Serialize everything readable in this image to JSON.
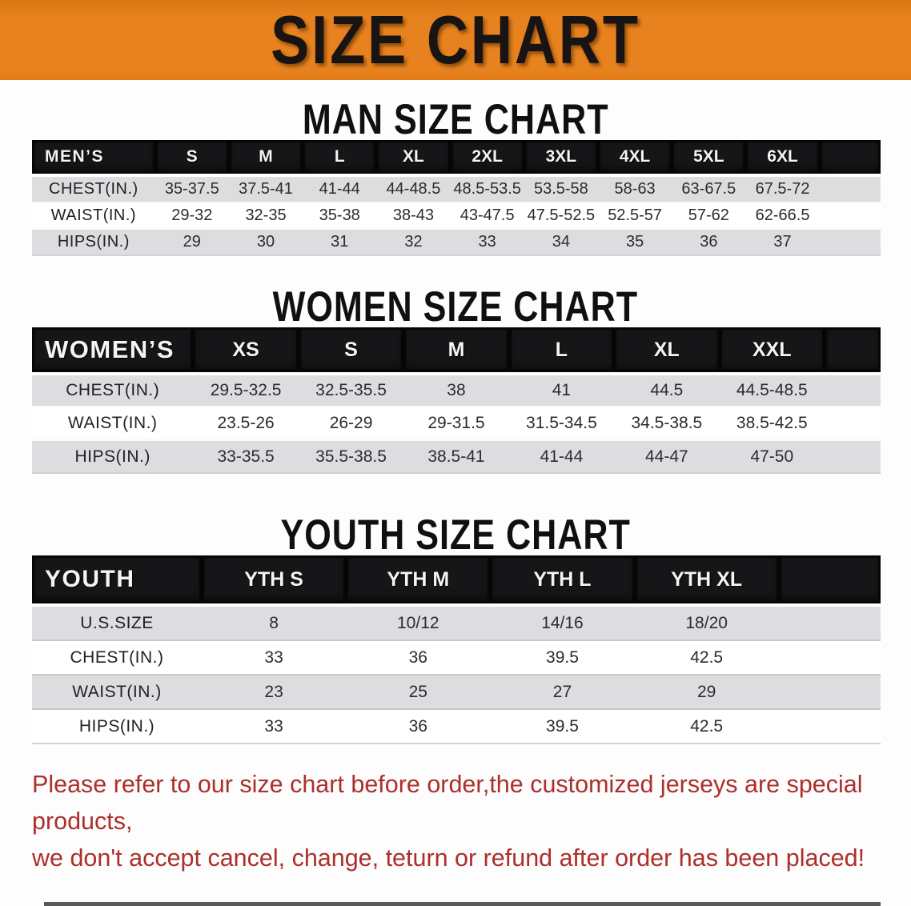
{
  "colors": {
    "banner_bg": "#e8821e",
    "header_bar": "#161618",
    "row_gray": "#dddddf",
    "disclaimer_red": "#ac2f2b"
  },
  "banner": {
    "title": "SIZE CHART"
  },
  "sections": [
    {
      "title": "MAN SIZE CHART",
      "header_label": "MEN’S",
      "columns": [
        "S",
        "M",
        "L",
        "XL",
        "2XL",
        "3XL",
        "4XL",
        "5XL",
        "6XL"
      ],
      "rows": [
        {
          "label": "CHEST(IN.)",
          "values": [
            "35-37.5",
            "37.5-41",
            "41-44",
            "44-48.5",
            "48.5-53.5",
            "53.5-58",
            "58-63",
            "63-67.5",
            "67.5-72"
          ]
        },
        {
          "label": "WAIST(IN.)",
          "values": [
            "29-32",
            "32-35",
            "35-38",
            "38-43",
            "43-47.5",
            "47.5-52.5",
            "52.5-57",
            "57-62",
            "62-66.5"
          ]
        },
        {
          "label": "HIPS(IN.)",
          "values": [
            "29",
            "30",
            "31",
            "32",
            "33",
            "34",
            "35",
            "36",
            "37"
          ]
        }
      ]
    },
    {
      "title": "WOMEN SIZE CHART",
      "header_label": "WOMEN’S",
      "columns": [
        "XS",
        "S",
        "M",
        "L",
        "XL",
        "XXL"
      ],
      "rows": [
        {
          "label": "CHEST(IN.)",
          "values": [
            "29.5-32.5",
            "32.5-35.5",
            "38",
            "41",
            "44.5",
            "44.5-48.5"
          ]
        },
        {
          "label": "WAIST(IN.)",
          "values": [
            "23.5-26",
            "26-29",
            "29-31.5",
            "31.5-34.5",
            "34.5-38.5",
            "38.5-42.5"
          ]
        },
        {
          "label": "HIPS(IN.)",
          "values": [
            "33-35.5",
            "35.5-38.5",
            "38.5-41",
            "41-44",
            "44-47",
            "47-50"
          ]
        }
      ]
    },
    {
      "title": "YOUTH SIZE CHART",
      "header_label": "YOUTH",
      "columns": [
        "YTH S",
        "YTH M",
        "YTH L",
        "YTH XL"
      ],
      "rows": [
        {
          "label": "U.S.SIZE",
          "values": [
            "8",
            "10/12",
            "14/16",
            "18/20"
          ]
        },
        {
          "label": "CHEST(IN.)",
          "values": [
            "33",
            "36",
            "39.5",
            "42.5"
          ]
        },
        {
          "label": "WAIST(IN.)",
          "values": [
            "23",
            "25",
            "27",
            "29"
          ]
        },
        {
          "label": "HIPS(IN.)",
          "values": [
            "33",
            "36",
            "39.5",
            "42.5"
          ]
        }
      ]
    }
  ],
  "disclaimer": {
    "line1": "Please refer to our size chart before order,the customized jerseys are special products,",
    "line2": "we don't accept cancel, change, teturn or refund after order has been placed!"
  }
}
